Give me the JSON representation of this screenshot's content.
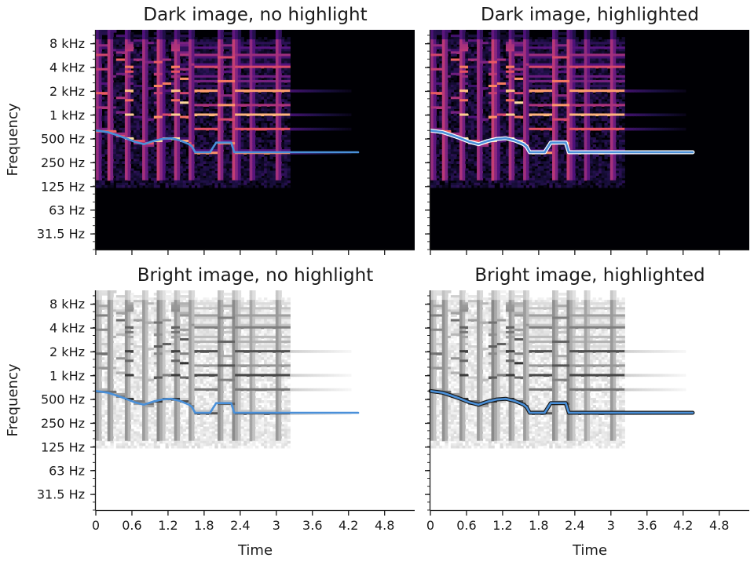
{
  "figure": {
    "x_tick_labels": [
      "0",
      "0.6",
      "1.2",
      "1.8",
      "2.4",
      "3",
      "3.6",
      "4.2",
      "4.8"
    ],
    "y_tick_labels": [
      "8 kHz",
      "4 kHz",
      "2 kHz",
      "1 kHz",
      "500 Hz",
      "250 Hz",
      "125 Hz",
      "63 Hz",
      "31.5 Hz"
    ],
    "xlabel": "Time",
    "ylabel": "Frequency"
  },
  "chart_data": [
    {
      "type": "heatmap",
      "title": "Dark image, no highlight",
      "colormap": "magma",
      "xlabel": "",
      "ylabel": "Frequency",
      "xlim": [
        0,
        5.3
      ],
      "y_scale": "log2",
      "ylim_hz": [
        20,
        12000
      ],
      "x_ticks": [
        0,
        0.6,
        1.2,
        1.8,
        2.4,
        3,
        3.6,
        4.2,
        4.8
      ],
      "y_ticks_hz": [
        8000,
        4000,
        2000,
        1000,
        500,
        250,
        125,
        63,
        31.5
      ],
      "overlay_line": {
        "color": "#4a90d9",
        "highlight": false,
        "x": [
          0,
          0.2,
          0.35,
          0.5,
          0.65,
          0.8,
          0.95,
          1.1,
          1.25,
          1.4,
          1.55,
          1.6,
          1.65,
          1.9,
          2.0,
          2.25,
          2.3,
          2.5,
          2.55,
          3.0,
          4.36
        ],
        "y": [
          640,
          610,
          560,
          510,
          460,
          430,
          470,
          500,
          510,
          480,
          430,
          400,
          340,
          340,
          450,
          450,
          340,
          340,
          340,
          340,
          340
        ]
      }
    },
    {
      "type": "heatmap",
      "title": "Dark image, highlighted",
      "colormap": "magma",
      "xlabel": "",
      "ylabel": "",
      "xlim": [
        0,
        5.3
      ],
      "y_scale": "log2",
      "ylim_hz": [
        20,
        12000
      ],
      "x_ticks": [
        0,
        0.6,
        1.2,
        1.8,
        2.4,
        3,
        3.6,
        4.2,
        4.8
      ],
      "y_ticks_hz": [
        8000,
        4000,
        2000,
        1000,
        500,
        250,
        125,
        63,
        31.5
      ],
      "overlay_line": {
        "color": "#4a90d9",
        "highlight": true,
        "x": [
          0,
          0.2,
          0.35,
          0.5,
          0.65,
          0.8,
          0.95,
          1.1,
          1.25,
          1.4,
          1.55,
          1.6,
          1.65,
          1.9,
          2.0,
          2.25,
          2.3,
          2.5,
          2.55,
          3.0,
          4.36
        ],
        "y": [
          640,
          610,
          560,
          510,
          460,
          430,
          470,
          500,
          510,
          480,
          430,
          400,
          340,
          340,
          450,
          450,
          340,
          340,
          340,
          340,
          340
        ]
      }
    },
    {
      "type": "heatmap",
      "title": "Bright image, no highlight",
      "colormap": "gray_r",
      "xlabel": "Time",
      "ylabel": "Frequency",
      "xlim": [
        0,
        5.3
      ],
      "y_scale": "log2",
      "ylim_hz": [
        20,
        12000
      ],
      "x_ticks": [
        0,
        0.6,
        1.2,
        1.8,
        2.4,
        3,
        3.6,
        4.2,
        4.8
      ],
      "y_ticks_hz": [
        8000,
        4000,
        2000,
        1000,
        500,
        250,
        125,
        63,
        31.5
      ],
      "overlay_line": {
        "color": "#4a90d9",
        "highlight": false,
        "x": [
          0,
          0.2,
          0.35,
          0.5,
          0.65,
          0.8,
          0.95,
          1.1,
          1.25,
          1.4,
          1.55,
          1.6,
          1.65,
          1.9,
          2.0,
          2.25,
          2.3,
          2.5,
          2.55,
          3.0,
          4.36
        ],
        "y": [
          640,
          610,
          560,
          510,
          460,
          430,
          470,
          500,
          510,
          480,
          430,
          400,
          340,
          340,
          450,
          450,
          340,
          340,
          340,
          340,
          340
        ]
      }
    },
    {
      "type": "heatmap",
      "title": "Bright image, highlighted",
      "colormap": "gray_r",
      "xlabel": "Time",
      "ylabel": "",
      "xlim": [
        0,
        5.3
      ],
      "y_scale": "log2",
      "ylim_hz": [
        20,
        12000
      ],
      "x_ticks": [
        0,
        0.6,
        1.2,
        1.8,
        2.4,
        3,
        3.6,
        4.2,
        4.8
      ],
      "y_ticks_hz": [
        8000,
        4000,
        2000,
        1000,
        500,
        250,
        125,
        63,
        31.5
      ],
      "overlay_line": {
        "color": "#4a90d9",
        "highlight": true,
        "x": [
          0,
          0.2,
          0.35,
          0.5,
          0.65,
          0.8,
          0.95,
          1.1,
          1.25,
          1.4,
          1.55,
          1.6,
          1.65,
          1.9,
          2.0,
          2.25,
          2.3,
          2.5,
          2.55,
          3.0,
          4.36
        ],
        "y": [
          640,
          610,
          560,
          510,
          460,
          430,
          470,
          500,
          510,
          480,
          430,
          400,
          340,
          340,
          450,
          450,
          340,
          340,
          340,
          340,
          340
        ]
      }
    }
  ]
}
